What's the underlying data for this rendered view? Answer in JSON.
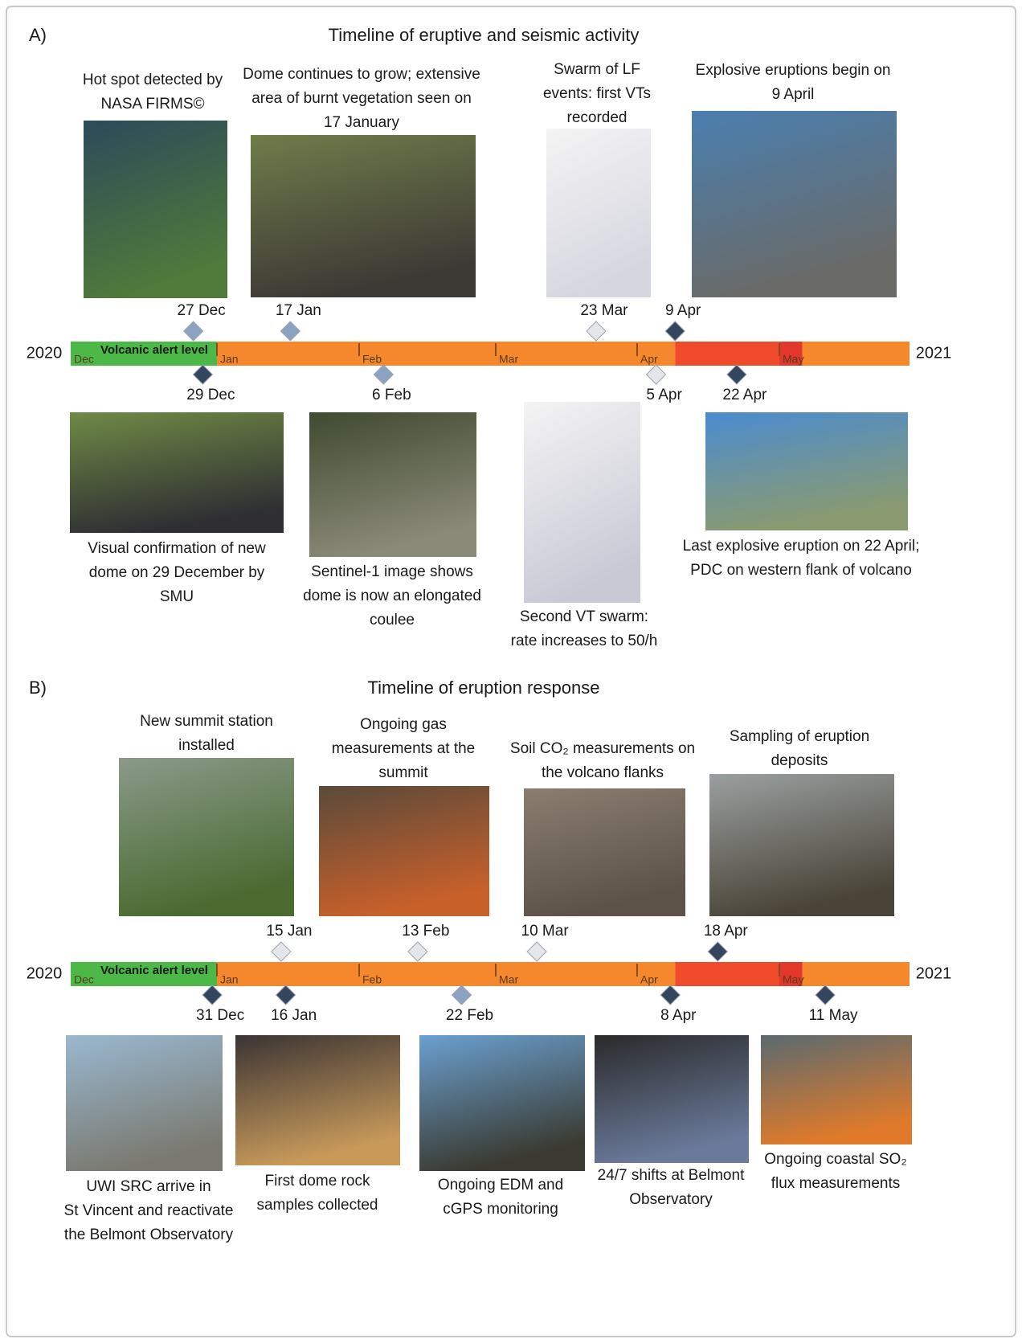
{
  "panels": [
    {
      "label": "A)",
      "title": "Timeline of eruptive and seismic activity",
      "timeline": {
        "start_year": "2020",
        "end_year": "2021",
        "alert_label": "Volcanic alert level",
        "months": [
          "Dec",
          "Jan",
          "Feb",
          "Mar",
          "Apr",
          "May"
        ],
        "alert_segments": [
          {
            "from": "1 Dec",
            "color": "#4cb848"
          },
          {
            "from": "1 Jan",
            "color": "#f5882d"
          },
          {
            "from": "9 Apr",
            "color": "#ef4a2a"
          },
          {
            "from": "1 May",
            "color": "#e2372a"
          },
          {
            "from": "6 May",
            "color": "#f5882d"
          }
        ]
      },
      "events": [
        {
          "date": "27 Dec",
          "side": "above",
          "marker_color": "#8ca2c0",
          "caption": [
            "Hot spot detected by",
            "NASA FIRMS©"
          ]
        },
        {
          "date": "17 Jan",
          "side": "above",
          "marker_color": "#8ca2c0",
          "caption": [
            "Dome continues to grow; extensive",
            "area of burnt vegetation seen on",
            "17 January"
          ]
        },
        {
          "date": "23 Mar",
          "side": "above",
          "marker_color": "#e4e6ea",
          "caption": [
            "Swarm of LF",
            "events: first VTs",
            "recorded"
          ]
        },
        {
          "date": "9 Apr",
          "side": "above",
          "marker_color": "#34465e",
          "caption": [
            "Explosive eruptions begin on",
            "9 April"
          ]
        },
        {
          "date": "29 Dec",
          "side": "below",
          "marker_color": "#34465e",
          "caption": [
            "Visual confirmation of new",
            "dome on 29 December by",
            "SMU"
          ]
        },
        {
          "date": "6 Feb",
          "side": "below",
          "marker_color": "#8ca2c0",
          "caption": [
            "Sentinel-1 image shows",
            "dome is now an elongated",
            "coulee"
          ]
        },
        {
          "date": "5 Apr",
          "side": "below",
          "marker_color": "#e4e6ea",
          "caption": [
            "Second VT swarm:",
            "rate increases to 50/h"
          ]
        },
        {
          "date": "22 Apr",
          "side": "below",
          "marker_color": "#34465e",
          "caption": [
            "Last explosive eruption on 22 April;",
            "PDC on western flank of volcano"
          ]
        }
      ]
    },
    {
      "label": "B)",
      "title": "Timeline of eruption response",
      "timeline": {
        "start_year": "2020",
        "end_year": "2021",
        "alert_label": "Volcanic alert level",
        "months": [
          "Dec",
          "Jan",
          "Feb",
          "Mar",
          "Apr",
          "May"
        ],
        "alert_segments": [
          {
            "from": "1 Dec",
            "color": "#4cb848"
          },
          {
            "from": "1 Jan",
            "color": "#f5882d"
          },
          {
            "from": "9 Apr",
            "color": "#ef4a2a"
          },
          {
            "from": "1 May",
            "color": "#e2372a"
          },
          {
            "from": "6 May",
            "color": "#f5882d"
          }
        ]
      },
      "events": [
        {
          "date": "15 Jan",
          "side": "above",
          "marker_color": "#e4e6ea",
          "caption": [
            "New summit station",
            "installed"
          ]
        },
        {
          "date": "13 Feb",
          "side": "above",
          "marker_color": "#e4e6ea",
          "caption": [
            "Ongoing gas",
            "measurements at the",
            "summit"
          ]
        },
        {
          "date": "10 Mar",
          "side": "above",
          "marker_color": "#e4e6ea",
          "caption": [
            "Soil CO₂ measurements on",
            "the volcano flanks"
          ]
        },
        {
          "date": "18 Apr",
          "side": "above",
          "marker_color": "#34465e",
          "caption": [
            "Sampling of eruption",
            "deposits"
          ]
        },
        {
          "date": "31 Dec",
          "side": "below",
          "marker_color": "#34465e",
          "caption": [
            "UWI SRC arrive in",
            "St Vincent and reactivate",
            "the Belmont Observatory"
          ]
        },
        {
          "date": "16 Jan",
          "side": "below",
          "marker_color": "#34465e",
          "caption": [
            "First dome rock",
            "samples collected"
          ]
        },
        {
          "date": "22 Feb",
          "side": "below",
          "marker_color": "#8ca2c0",
          "caption": [
            "Ongoing EDM and",
            "cGPS monitoring"
          ]
        },
        {
          "date": "8 Apr",
          "side": "below",
          "marker_color": "#34465e",
          "caption": [
            "24/7 shifts at Belmont",
            "Observatory"
          ]
        },
        {
          "date": "11 May",
          "side": "below",
          "marker_color": "#34465e",
          "caption": [
            "Ongoing coastal SO₂",
            "flux measurements"
          ]
        }
      ]
    }
  ]
}
